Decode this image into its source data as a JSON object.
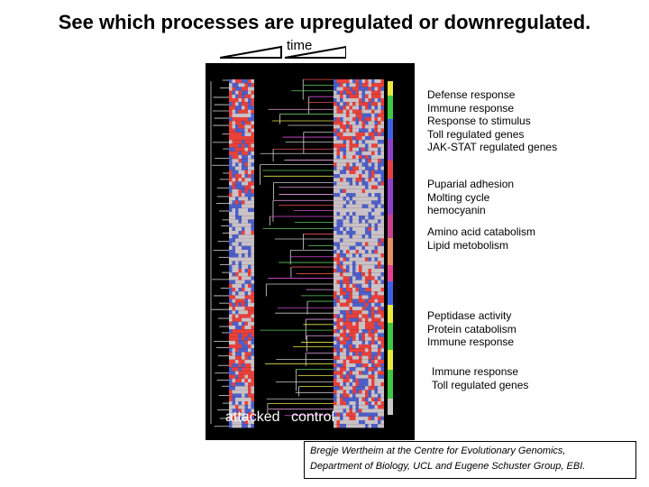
{
  "title": "See which processes are upregulated or downregulated.",
  "time_label": "time",
  "heatmap": {
    "label_attacked": "attacked",
    "label_control": "control",
    "colors": {
      "up": "#e8403a",
      "down": "#4d5ec8",
      "neutral": "#c9c1c6",
      "tree": "#d8d8d8",
      "background": "#000000"
    }
  },
  "annotation_groups": [
    {
      "items": [
        "Defense response",
        "Immune response",
        "Response to stimulus",
        "Toll regulated genes",
        "JAK-STAT regulated genes"
      ]
    },
    {
      "items": [
        "Puparial adhesion",
        "Molting cycle",
        "hemocyanin"
      ]
    },
    {
      "items": [
        "Amino acid catabolism",
        "Lipid metobolism"
      ]
    },
    {
      "items": [
        "Peptidase activity",
        "Protein catabolism",
        "Immune response"
      ]
    },
    {
      "items": [
        "Immune response",
        "Toll regulated genes"
      ]
    }
  ],
  "credit": {
    "line1": "Bregje Wertheim at the Centre for Evolutionary Genomics,",
    "line2": "Department of Biology, UCL and Eugene Schuster Group, EBI."
  }
}
